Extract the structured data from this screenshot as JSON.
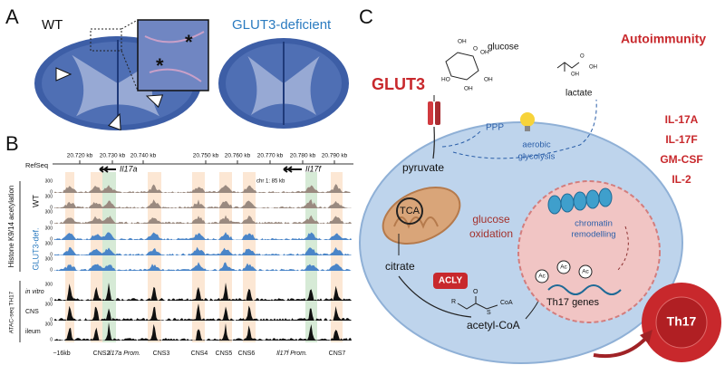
{
  "panel_a": {
    "label": "A",
    "left_title": "WT",
    "right_title": "GLUT3-deficient",
    "asterisk": "*"
  },
  "panel_b": {
    "label": "B",
    "refseq": "RefSeq",
    "coords": [
      "20.720 kb",
      "20.730 kb",
      "20.740 kb",
      "20.750 kb",
      "20.760 kb",
      "20.770 kb",
      "20.780 kb",
      "20.790 kb"
    ],
    "genes": [
      "Il17a",
      "Il17f"
    ],
    "scale": "chr 1: 85 kb",
    "histone_label": "Histone K9/14 acetylation",
    "wt_label": "WT",
    "glut3_label": "GLUT3-def.",
    "atac_label": "ATAC-seq TH17",
    "atac_tracks": [
      "in vitro",
      "CNS",
      "ileum"
    ],
    "track_ticks": [
      "300",
      "0"
    ],
    "regions": [
      "−16kb",
      "CNS2",
      "Il17a Prom.",
      "CNS3",
      "CNS4",
      "CNS5",
      "CNS6",
      "Il17f Prom.",
      "CNS7"
    ]
  },
  "panel_c": {
    "label": "C",
    "glucose": "glucose",
    "lactate": "lactate",
    "autoimmunity": "Autoimmunity",
    "glut3": "GLUT3",
    "ppp": "PPP",
    "aerobic_glycolysis": [
      "aerobic",
      "glycolysis"
    ],
    "pyruvate": "pyruvate",
    "tca": "TCA",
    "glucose_oxidation": [
      "glucose",
      "oxidation"
    ],
    "citrate": "citrate",
    "acly": "ACLY",
    "acetyl_coa": "acetyl-CoA",
    "acetyl_groups": [
      "R",
      "S",
      "CoA",
      "O"
    ],
    "chromatin_remodelling": [
      "chromatin",
      "remodelling"
    ],
    "th17_genes": "Th17 genes",
    "ac": "Ac",
    "glucose_groups": [
      "OH",
      "OH",
      "HO",
      "OH",
      "OH",
      "O"
    ],
    "lactate_groups": [
      "OH",
      "O",
      "OH"
    ],
    "cytokines": [
      "IL-17A",
      "IL-17F",
      "GM-CSF",
      "IL-2"
    ],
    "th17": "Th17"
  }
}
